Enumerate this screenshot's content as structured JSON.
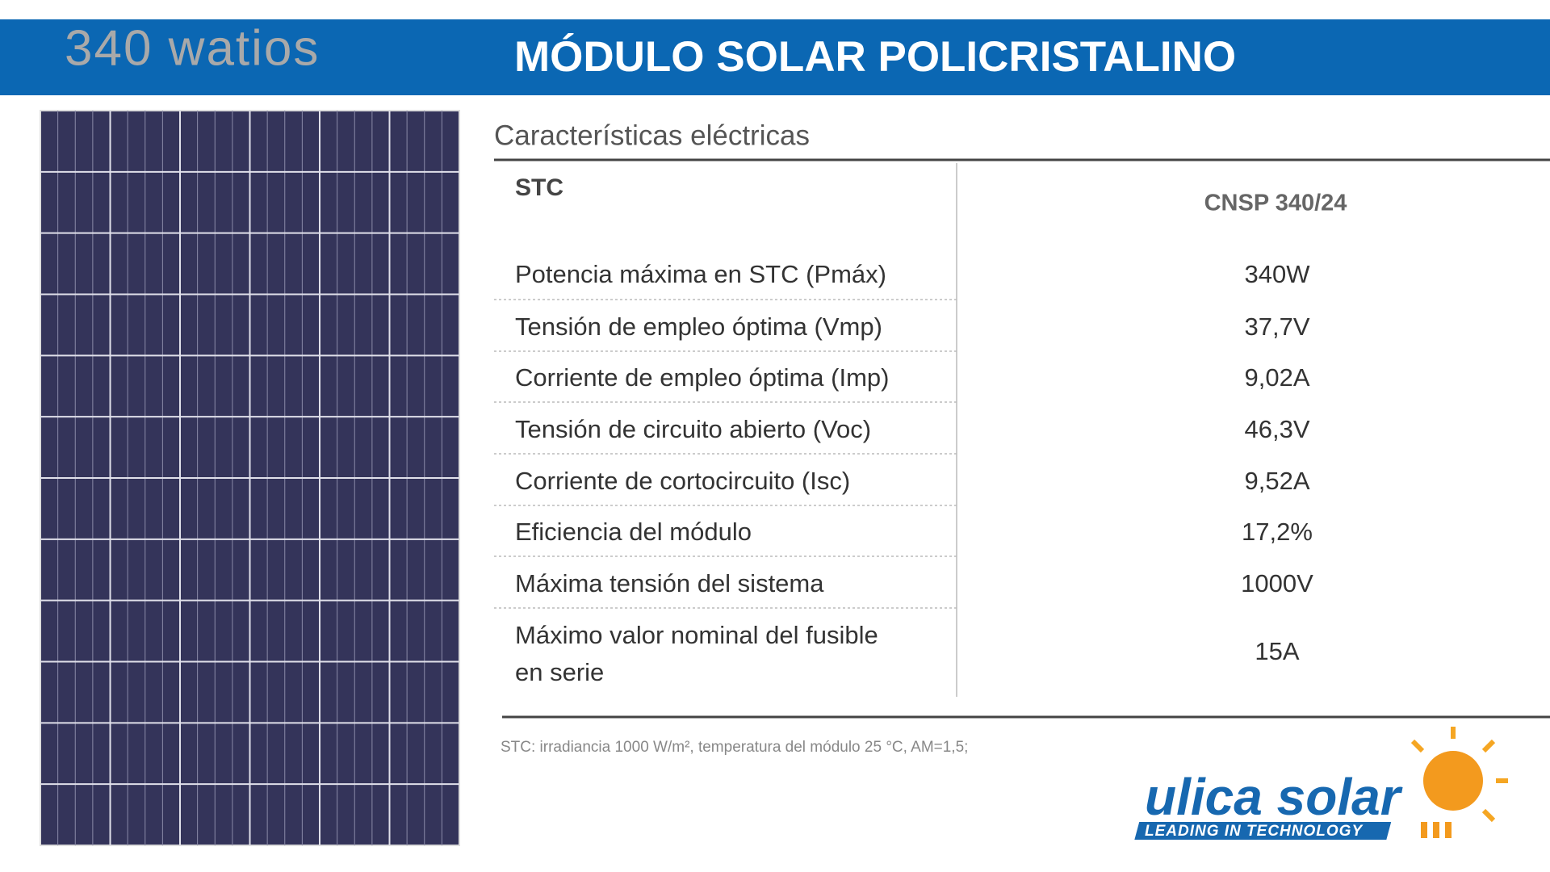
{
  "header": {
    "wattage": "340 watios",
    "title": "MÓDULO SOLAR POLICRISTALINO"
  },
  "section_title": "Características eléctricas",
  "table": {
    "header": [
      "STC",
      "CNSP 340/24"
    ],
    "rows": [
      [
        "Potencia máxima en STC (Pmáx)",
        "340W"
      ],
      [
        "Tensión de empleo óptima (Vmp)",
        "37,7V"
      ],
      [
        "Corriente de empleo óptima (Imp)",
        "9,02A"
      ],
      [
        "Tensión de circuito abierto (Voc)",
        "46,3V"
      ],
      [
        "Corriente de cortocircuito (Isc)",
        "9,52A"
      ],
      [
        "Eficiencia del módulo",
        "17,2%"
      ],
      [
        "Máxima tensión del sistema",
        "1000V"
      ],
      [
        "Máximo valor nominal del fusible en serie",
        "15A"
      ]
    ]
  },
  "footnote": "STC: irradiancia 1000 W/m², temperatura del módulo 25 °C, AM=1,5;",
  "logo": {
    "name": "ulica solar",
    "tagline": "LEADING IN TECHNOLOGY"
  }
}
